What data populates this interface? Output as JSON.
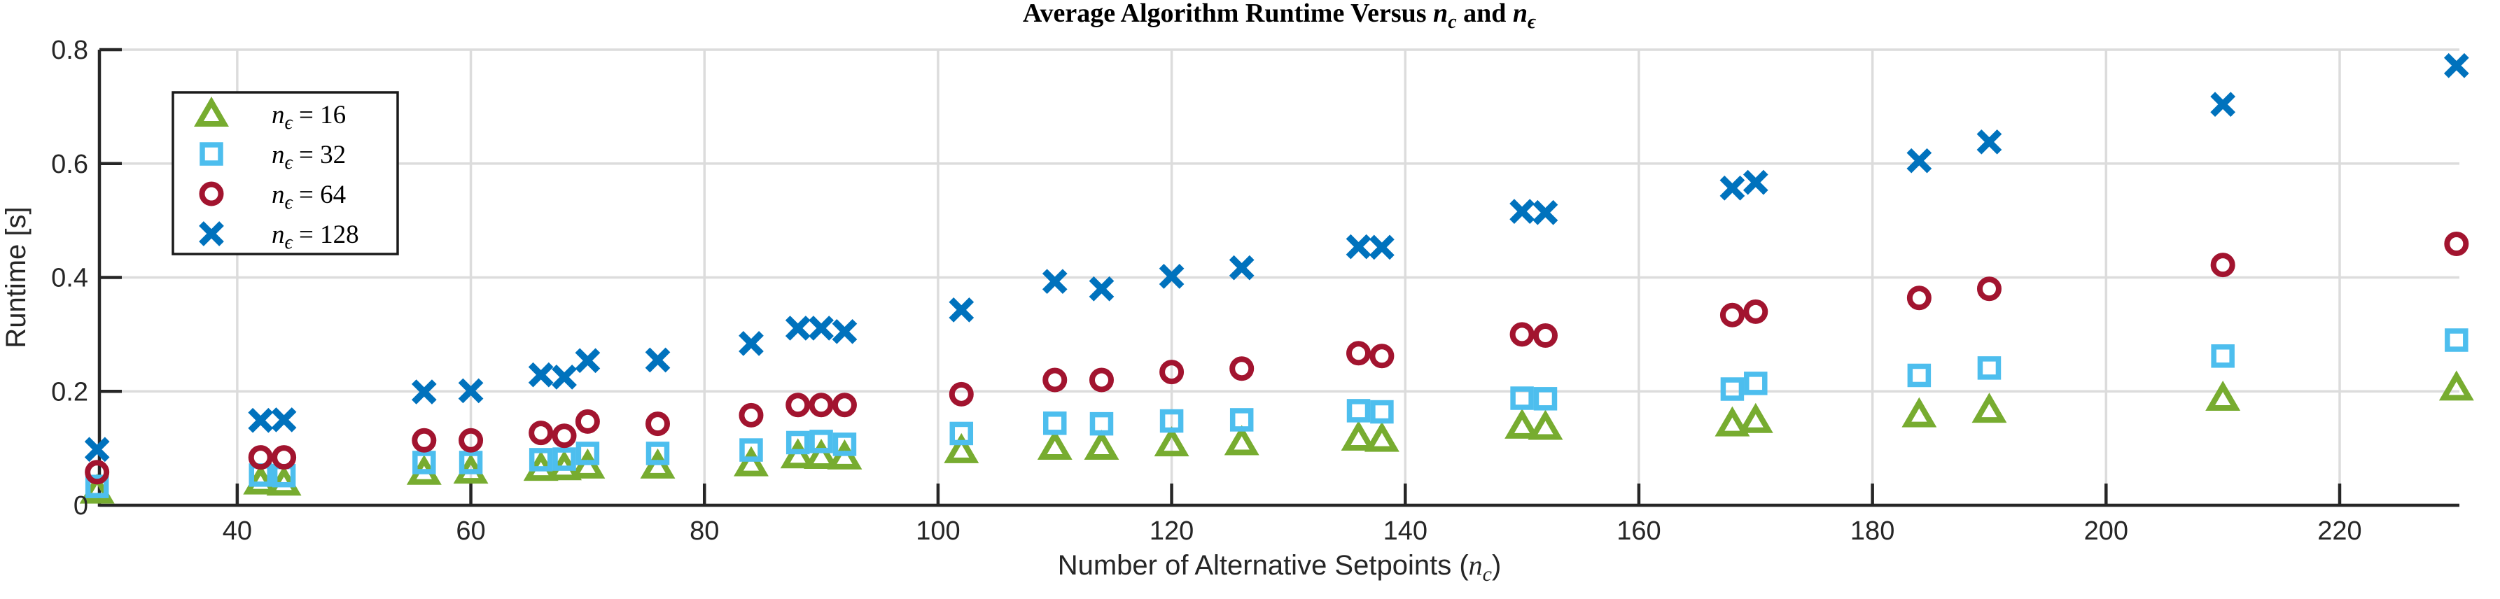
{
  "figure": {
    "background": "#ffffff",
    "axis_color": "#262626",
    "grid_color": "#dcdcdc",
    "tick_label_color": "#262626",
    "title_color": "#000000",
    "legend_border_color": "#1a1a1a",
    "legend_background": "#ffffff"
  },
  "chart_data": {
    "type": "scatter",
    "title": "Average Algorithm Runtime Versus n_c and n_ϵ",
    "title_parts": [
      {
        "t": "Average Algorithm Runtime Versus ",
        "k": "text"
      },
      {
        "t": "n",
        "k": "var"
      },
      {
        "t": "c",
        "k": "sub"
      },
      {
        "t": " and ",
        "k": "text"
      },
      {
        "t": "n",
        "k": "var"
      },
      {
        "t": "ϵ",
        "k": "sub"
      }
    ],
    "xlabel": "Number of Alternative Setpoints (n_c)",
    "xlabel_parts": [
      {
        "t": "Number of Alternative Setpoints (",
        "k": "text"
      },
      {
        "t": "n",
        "k": "var"
      },
      {
        "t": "c",
        "k": "sub"
      },
      {
        "t": ")",
        "k": "text"
      }
    ],
    "ylabel": "Runtime [s]",
    "xlim": [
      28.2,
      230.25
    ],
    "ylim": [
      0,
      0.8
    ],
    "x_ticks": [
      40,
      60,
      80,
      100,
      120,
      140,
      160,
      180,
      200,
      220
    ],
    "x_tick_labels": [
      "40",
      "60",
      "80",
      "100",
      "120",
      "140",
      "160",
      "180",
      "200",
      "220"
    ],
    "y_ticks": [
      0,
      0.2,
      0.4,
      0.6,
      0.8
    ],
    "y_tick_labels": [
      "0",
      "0.2",
      "0.4",
      "0.6",
      "0.8"
    ],
    "grid": true,
    "legend": {
      "position": "top-left",
      "entries": [
        {
          "marker": "triangle",
          "color": "#77AC30",
          "label": "n_ϵ = 16",
          "label_parts": [
            {
              "t": "n",
              "k": "var"
            },
            {
              "t": "ϵ",
              "k": "sub"
            },
            {
              "t": " = 16",
              "k": "text"
            }
          ]
        },
        {
          "marker": "square",
          "color": "#4DBEEE",
          "label": "n_ϵ = 32",
          "label_parts": [
            {
              "t": "n",
              "k": "var"
            },
            {
              "t": "ϵ",
              "k": "sub"
            },
            {
              "t": " = 32",
              "k": "text"
            }
          ]
        },
        {
          "marker": "circle",
          "color": "#A2142F",
          "label": "n_ϵ = 64",
          "label_parts": [
            {
              "t": "n",
              "k": "var"
            },
            {
              "t": "ϵ",
              "k": "sub"
            },
            {
              "t": " = 64",
              "k": "text"
            }
          ]
        },
        {
          "marker": "x",
          "color": "#0072BD",
          "label": "n_ϵ = 128",
          "label_parts": [
            {
              "t": "n",
              "k": "var"
            },
            {
              "t": "ϵ",
              "k": "sub"
            },
            {
              "t": " = 128",
              "k": "text"
            }
          ]
        }
      ]
    },
    "x": [
      28,
      42,
      44,
      56,
      60,
      66,
      68,
      70,
      76,
      84,
      88,
      90,
      92,
      102,
      110,
      114,
      120,
      126,
      136,
      138,
      150,
      152,
      168,
      170,
      184,
      190,
      210,
      230
    ],
    "series": [
      {
        "name": "n_eps = 16",
        "marker": "triangle",
        "color": "#77AC30",
        "values": [
          0.025,
          0.041,
          0.039,
          0.058,
          0.06,
          0.065,
          0.066,
          0.069,
          0.069,
          0.073,
          0.087,
          0.086,
          0.085,
          0.096,
          0.102,
          0.102,
          0.108,
          0.11,
          0.118,
          0.116,
          0.139,
          0.137,
          0.143,
          0.149,
          0.159,
          0.167,
          0.188,
          0.206
        ]
      },
      {
        "name": "n_eps = 32",
        "marker": "square",
        "color": "#4DBEEE",
        "values": [
          0.033,
          0.053,
          0.052,
          0.075,
          0.075,
          0.08,
          0.081,
          0.091,
          0.091,
          0.097,
          0.11,
          0.112,
          0.107,
          0.126,
          0.144,
          0.143,
          0.148,
          0.15,
          0.166,
          0.164,
          0.188,
          0.187,
          0.204,
          0.214,
          0.228,
          0.241,
          0.262,
          0.29
        ]
      },
      {
        "name": "n_eps = 64",
        "marker": "circle",
        "color": "#A2142F",
        "values": [
          0.058,
          0.084,
          0.084,
          0.114,
          0.114,
          0.127,
          0.122,
          0.147,
          0.143,
          0.158,
          0.176,
          0.176,
          0.176,
          0.195,
          0.22,
          0.22,
          0.234,
          0.24,
          0.267,
          0.262,
          0.3,
          0.298,
          0.334,
          0.34,
          0.364,
          0.38,
          0.422,
          0.459
        ]
      },
      {
        "name": "n_eps = 128",
        "marker": "x",
        "color": "#0072BD",
        "values": [
          0.098,
          0.149,
          0.15,
          0.199,
          0.201,
          0.229,
          0.225,
          0.254,
          0.255,
          0.284,
          0.311,
          0.311,
          0.305,
          0.343,
          0.393,
          0.38,
          0.402,
          0.417,
          0.454,
          0.453,
          0.516,
          0.514,
          0.557,
          0.567,
          0.605,
          0.638,
          0.704,
          0.772
        ]
      }
    ]
  }
}
